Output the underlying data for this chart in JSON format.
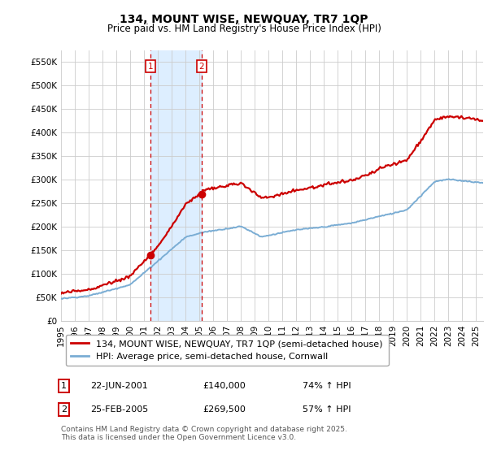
{
  "title": "134, MOUNT WISE, NEWQUAY, TR7 1QP",
  "subtitle": "Price paid vs. HM Land Registry's House Price Index (HPI)",
  "ylabel_ticks": [
    "£0",
    "£50K",
    "£100K",
    "£150K",
    "£200K",
    "£250K",
    "£300K",
    "£350K",
    "£400K",
    "£450K",
    "£500K",
    "£550K"
  ],
  "ytick_values": [
    0,
    50000,
    100000,
    150000,
    200000,
    250000,
    300000,
    350000,
    400000,
    450000,
    500000,
    550000
  ],
  "ylim": [
    0,
    575000
  ],
  "xlim_start": 1995.0,
  "xlim_end": 2025.5,
  "purchase1_x": 2001.47,
  "purchase1_y": 140000,
  "purchase2_x": 2005.15,
  "purchase2_y": 269500,
  "purchase1_label": "1",
  "purchase2_label": "2",
  "shade_x1": 2001.47,
  "shade_x2": 2005.15,
  "vline1_x": 2001.47,
  "vline2_x": 2005.15,
  "legend_line1": "134, MOUNT WISE, NEWQUAY, TR7 1QP (semi-detached house)",
  "legend_line2": "HPI: Average price, semi-detached house, Cornwall",
  "table_row1": [
    "1",
    "22-JUN-2001",
    "£140,000",
    "74% ↑ HPI"
  ],
  "table_row2": [
    "2",
    "25-FEB-2005",
    "£269,500",
    "57% ↑ HPI"
  ],
  "footer": "Contains HM Land Registry data © Crown copyright and database right 2025.\nThis data is licensed under the Open Government Licence v3.0.",
  "red_color": "#cc0000",
  "blue_color": "#7aadd4",
  "shade_color": "#ddeeff",
  "background_color": "#ffffff",
  "grid_color": "#cccccc",
  "title_fontsize": 10,
  "subtitle_fontsize": 8.5,
  "tick_fontsize": 7.5,
  "legend_fontsize": 8,
  "footer_fontsize": 6.5
}
